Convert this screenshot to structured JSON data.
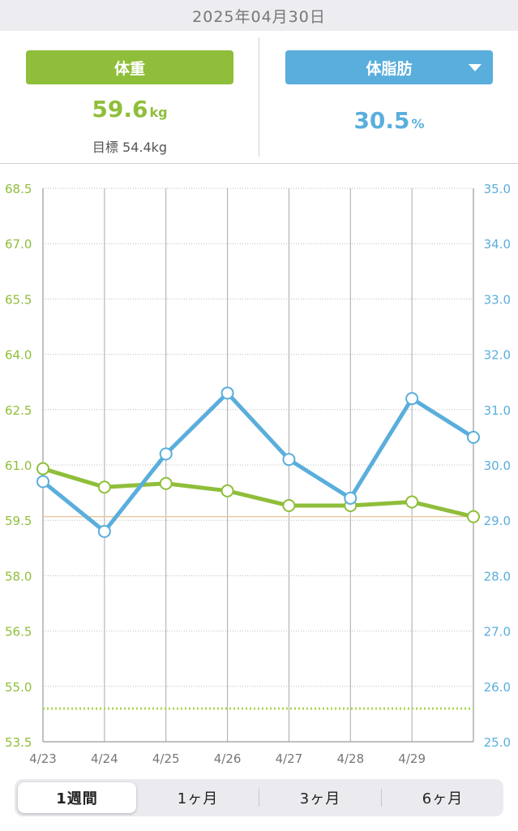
{
  "header": {
    "date": "2025年04月30日"
  },
  "summary": {
    "weight_tab": "体重",
    "weight_value": "59.6",
    "weight_unit": "kg",
    "goal_text": "目標 54.4kg",
    "fat_tab": "体脂肪",
    "fat_value": "30.5",
    "fat_unit": "%"
  },
  "colors": {
    "weight": "#8fbe3a",
    "fat": "#5aaedc",
    "goal_line": "#a6d653",
    "weight_ref_line": "#e9c9a0"
  },
  "icons": {
    "fat_dropdown": "triangle-down-icon"
  },
  "period_tabs": {
    "items": [
      "1週間",
      "1ヶ月",
      "3ヶ月",
      "6ヶ月"
    ],
    "selected": "1週間"
  },
  "chart_data": {
    "type": "line",
    "x": [
      "4/23",
      "4/24",
      "4/25",
      "4/26",
      "4/27",
      "4/28",
      "4/29",
      "4/30"
    ],
    "x_tick_labels": [
      "4/23",
      "4/24",
      "4/25",
      "4/26",
      "4/27",
      "4/28",
      "4/29"
    ],
    "y_left": {
      "ylim": [
        53.5,
        68.5
      ],
      "ticks": [
        "68.5",
        "67.0",
        "65.5",
        "64.0",
        "62.5",
        "61.0",
        "59.5",
        "58.0",
        "56.5",
        "55.0",
        "53.5"
      ]
    },
    "y_right": {
      "ylim": [
        25.0,
        35.0
      ],
      "ticks": [
        "35.0",
        "34.0",
        "33.0",
        "32.0",
        "31.0",
        "30.0",
        "29.0",
        "28.0",
        "27.0",
        "26.0",
        "25.0"
      ]
    },
    "series": [
      {
        "axis": "left",
        "color": "#8fbe3a",
        "values": [
          60.9,
          60.4,
          60.5,
          60.3,
          59.9,
          59.9,
          60.0,
          59.6
        ]
      },
      {
        "axis": "right",
        "color": "#5aaedc",
        "values": [
          29.7,
          28.8,
          30.2,
          31.3,
          30.1,
          29.4,
          31.2,
          30.5
        ]
      }
    ],
    "goal_line": {
      "axis": "left",
      "value": 54.4,
      "style": "dotted"
    },
    "reference_line": {
      "axis": "left",
      "value": 59.6
    },
    "grid": true
  }
}
